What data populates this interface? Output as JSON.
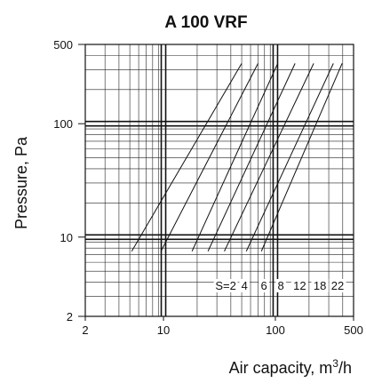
{
  "chart_data": {
    "type": "line",
    "title": "A 100 VRF",
    "xlabel": "Air capacity, m",
    "xlabel_sup": "3",
    "xlabel_suffix": "/h",
    "ylabel": "Pressure, Pa",
    "x_scale": "log",
    "y_scale": "log",
    "xlim": [
      2,
      500
    ],
    "ylim": [
      2,
      500
    ],
    "x_ticks": [
      {
        "value": 2,
        "label": "2"
      },
      {
        "value": 10,
        "label": "10"
      },
      {
        "value": 100,
        "label": "100"
      },
      {
        "value": 500,
        "label": "500"
      }
    ],
    "y_ticks": [
      {
        "value": 2,
        "label": "2"
      },
      {
        "value": 10,
        "label": "10"
      },
      {
        "value": 100,
        "label": "100"
      },
      {
        "value": 500,
        "label": "500"
      }
    ],
    "grid": true,
    "s_label_prefix": "S=",
    "series": [
      {
        "label": "2",
        "points": [
          [
            5.2,
            7.5
          ],
          [
            50,
            340
          ]
        ]
      },
      {
        "label": "4",
        "points": [
          [
            9.5,
            7.5
          ],
          [
            70,
            340
          ]
        ]
      },
      {
        "label": "6",
        "points": [
          [
            18,
            7.5
          ],
          [
            105,
            340
          ]
        ]
      },
      {
        "label": "8",
        "points": [
          [
            25,
            7.5
          ],
          [
            150,
            340
          ]
        ]
      },
      {
        "label": "12",
        "points": [
          [
            35,
            7.5
          ],
          [
            220,
            340
          ]
        ]
      },
      {
        "label": "18",
        "points": [
          [
            55,
            7.5
          ],
          [
            330,
            340
          ]
        ]
      },
      {
        "label": "22",
        "points": [
          [
            75,
            7.5
          ],
          [
            395,
            340
          ]
        ]
      }
    ],
    "s_label_positions": [
      {
        "label": "2",
        "x": 36
      },
      {
        "label": "4",
        "x": 53
      },
      {
        "label": "6",
        "x": 79
      },
      {
        "label": "8",
        "x": 112
      },
      {
        "label": "12",
        "x": 165
      },
      {
        "label": "18",
        "x": 250
      },
      {
        "label": "22",
        "x": 360
      }
    ],
    "s_label_y": 3.5
  }
}
